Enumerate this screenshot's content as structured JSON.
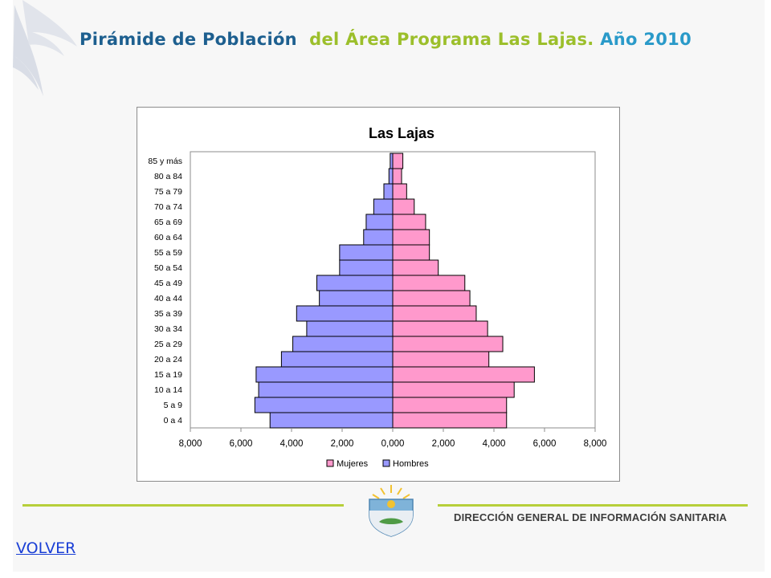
{
  "page": {
    "title_part1": "Pirámide de Población",
    "title_part2": "del Área Programa Las Lajas.",
    "title_part3": "Año 2010",
    "organization": "DIRECCIÓN GENERAL DE INFORMACIÓN SANITARIA",
    "back_link": "VOLVER",
    "colors": {
      "title_blue": "#1d5f8f",
      "title_green": "#9cbf2b",
      "title_cyan": "#2a9ac9",
      "accent_line": "#b7cf3a"
    }
  },
  "chart_data": {
    "type": "bar",
    "orientation": "horizontal-population-pyramid",
    "title": "Las Lajas",
    "categories": [
      "0 a 4",
      "5 a 9",
      "10 a 14",
      "15 a 19",
      "20 a 24",
      "25 a 29",
      "30 a 34",
      "35 a 39",
      "40 a 44",
      "45 a 49",
      "50 a 54",
      "55 a 59",
      "60 a 64",
      "65 a 69",
      "70 a 74",
      "75 a 79",
      "80 a 84",
      "85 y más"
    ],
    "series": [
      {
        "name": "Mujeres",
        "side": "right",
        "color": "#ff99cc",
        "values": [
          4500,
          4500,
          4800,
          5600,
          3800,
          4350,
          3750,
          3300,
          3050,
          2850,
          1800,
          1450,
          1450,
          1300,
          850,
          550,
          350,
          400
        ]
      },
      {
        "name": "Hombres",
        "side": "left",
        "color": "#9999ff",
        "values": [
          4850,
          5450,
          5300,
          5400,
          4400,
          3950,
          3400,
          3800,
          2900,
          3000,
          2100,
          2100,
          1150,
          1050,
          750,
          350,
          150,
          100
        ]
      }
    ],
    "xlim": [
      -8000,
      8000
    ],
    "x_ticks": [
      -8000,
      -6000,
      -4000,
      -2000,
      0,
      2000,
      4000,
      6000,
      8000
    ],
    "x_tick_labels": [
      "8,000",
      "6,000",
      "4,000",
      "2,000",
      "0,000",
      "2,000",
      "4,000",
      "6,000",
      "8,000"
    ],
    "grid": false,
    "legend_position": "bottom",
    "legend": [
      "Mujeres",
      "Hombres"
    ]
  }
}
